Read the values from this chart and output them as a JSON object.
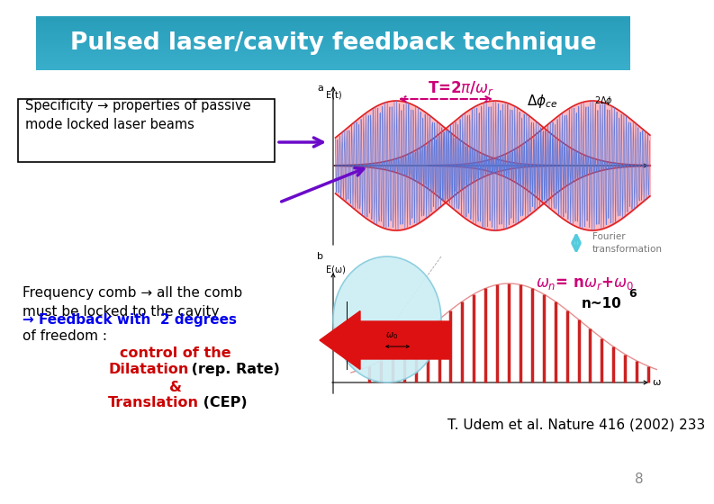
{
  "title": "Pulsed laser/cavity feedback technique",
  "title_bg_color": "#3AAFCC",
  "title_text_color": "#FFFFFF",
  "background_color": "#FFFFFF",
  "slide_number": "8",
  "citation": "T. Udem et al. Nature 416 (2002) 233"
}
